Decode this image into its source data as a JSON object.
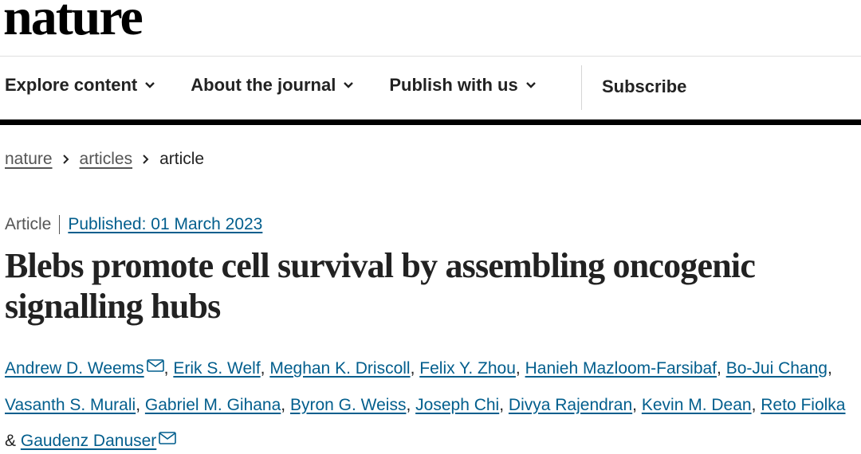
{
  "header": {
    "logo": "nature"
  },
  "nav": {
    "items": [
      "Explore content",
      "About the journal",
      "Publish with us"
    ],
    "subscribe": "Subscribe"
  },
  "breadcrumb": [
    "nature",
    "articles",
    "article"
  ],
  "article": {
    "type": "Article",
    "published": "Published: 01 March 2023",
    "title": "Blebs promote cell survival by assembling oncogenic signalling hubs",
    "separator": ",",
    "conjunction": "&",
    "authors": [
      "Andrew D. Weems",
      "Erik S. Welf",
      "Meghan K. Driscoll",
      "Felix Y. Zhou",
      "Hanieh Mazloom-Farsibaf",
      "Bo-Jui Chang",
      "Vasanth S. Murali",
      "Gabriel M. Gihana",
      "Byron G. Weiss",
      "Joseph Chi",
      "Divya Rajendran",
      "Kevin M. Dean",
      "Reto Fiolka",
      "Gaudenz Danuser"
    ]
  }
}
